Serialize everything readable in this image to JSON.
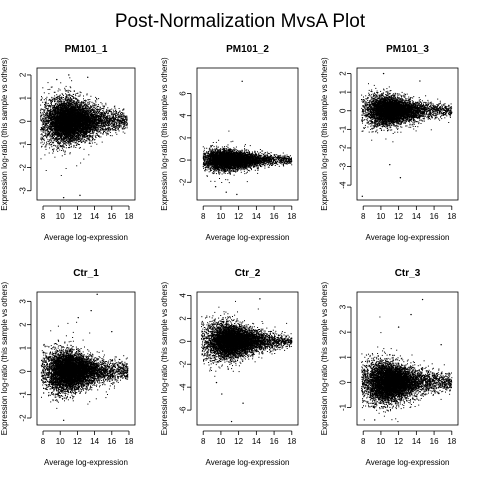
{
  "figure": {
    "title": "Post-Normalization MvsA Plot"
  },
  "chart_data": [
    {
      "type": "scatter",
      "title": "PM101_1",
      "xlabel": "Average log-expression",
      "ylabel": "Expression log-ratio (this sample vs others)",
      "xlim": [
        7.3,
        18.7
      ],
      "ylim": [
        -3.4,
        2.3
      ],
      "xticks": [
        8,
        10,
        12,
        14,
        16,
        18
      ],
      "yticks": [
        -3,
        -2,
        -1,
        0,
        1,
        2
      ],
      "grid": false,
      "cloud": {
        "center_x": 10.5,
        "x_min": 7.7,
        "x_max": 17.8,
        "x_skew": 1.6,
        "spread_at_low": 0.55,
        "spread_at_high": 0.2,
        "dense_points": 8000
      },
      "outliers": [
        {
          "x": 10.4,
          "y": -3.3
        },
        {
          "x": 12.3,
          "y": -3.2
        },
        {
          "x": 11.0,
          "y": 2.0
        },
        {
          "x": 13.2,
          "y": 1.9
        },
        {
          "x": 9.6,
          "y": 1.8
        }
      ]
    },
    {
      "type": "scatter",
      "title": "PM101_2",
      "xlabel": "Average log-expression",
      "ylabel": "Expression log-ratio (this sample vs others)",
      "xlim": [
        7.3,
        18.7
      ],
      "ylim": [
        -3.6,
        8.3
      ],
      "xticks": [
        8,
        10,
        12,
        14,
        16,
        18
      ],
      "yticks": [
        -2,
        0,
        2,
        4,
        6
      ],
      "grid": false,
      "cloud": {
        "center_x": 10.3,
        "x_min": 8.0,
        "x_max": 18.0,
        "x_skew": 1.6,
        "spread_at_low": 0.5,
        "spread_at_high": 0.18,
        "dense_points": 6000
      },
      "outliers": [
        {
          "x": 12.4,
          "y": 7.1
        },
        {
          "x": 10.6,
          "y": -2.9
        },
        {
          "x": 11.8,
          "y": -3.1
        },
        {
          "x": 9.4,
          "y": -2.4
        }
      ]
    },
    {
      "type": "scatter",
      "title": "PM101_3",
      "xlabel": "Average log-expression",
      "ylabel": "Expression log-ratio (this sample vs others)",
      "xlim": [
        7.3,
        18.7
      ],
      "ylim": [
        -4.8,
        2.3
      ],
      "xticks": [
        8,
        10,
        12,
        14,
        16,
        18
      ],
      "yticks": [
        -4,
        -3,
        -2,
        -1,
        0,
        1,
        2
      ],
      "grid": false,
      "cloud": {
        "center_x": 10.5,
        "x_min": 7.8,
        "x_max": 18.0,
        "x_skew": 1.6,
        "spread_at_low": 0.45,
        "spread_at_high": 0.15,
        "dense_points": 6000
      },
      "outliers": [
        {
          "x": 7.9,
          "y": -4.6
        },
        {
          "x": 12.2,
          "y": -3.6
        },
        {
          "x": 11.0,
          "y": -2.9
        },
        {
          "x": 14.4,
          "y": 1.6
        },
        {
          "x": 10.3,
          "y": 2.0
        }
      ]
    },
    {
      "type": "scatter",
      "title": "Ctr_1",
      "xlabel": "Average log-expression",
      "ylabel": "Expression log-ratio (this sample vs others)",
      "xlim": [
        7.3,
        18.7
      ],
      "ylim": [
        -2.3,
        3.4
      ],
      "xticks": [
        8,
        10,
        12,
        14,
        16,
        18
      ],
      "yticks": [
        -2,
        -1,
        0,
        1,
        2,
        3
      ],
      "grid": false,
      "cloud": {
        "center_x": 10.5,
        "x_min": 7.8,
        "x_max": 17.9,
        "x_skew": 1.6,
        "spread_at_low": 0.5,
        "spread_at_high": 0.18,
        "dense_points": 7000
      },
      "outliers": [
        {
          "x": 14.3,
          "y": 3.3
        },
        {
          "x": 13.6,
          "y": 2.6
        },
        {
          "x": 12.1,
          "y": 2.3
        },
        {
          "x": 10.4,
          "y": -2.1
        },
        {
          "x": 16.0,
          "y": 1.7
        }
      ]
    },
    {
      "type": "scatter",
      "title": "Ctr_2",
      "xlabel": "Average log-expression",
      "ylabel": "Expression log-ratio (this sample vs others)",
      "xlim": [
        7.3,
        18.7
      ],
      "ylim": [
        -7.3,
        4.3
      ],
      "xticks": [
        8,
        10,
        12,
        14,
        16,
        18
      ],
      "yticks": [
        -6,
        -4,
        -2,
        0,
        2,
        4
      ],
      "grid": false,
      "cloud": {
        "center_x": 10.6,
        "x_min": 7.8,
        "x_max": 18.0,
        "x_skew": 1.6,
        "spread_at_low": 0.9,
        "spread_at_high": 0.25,
        "dense_points": 7000
      },
      "outliers": [
        {
          "x": 11.2,
          "y": -7.0
        },
        {
          "x": 12.5,
          "y": -5.4
        },
        {
          "x": 10.1,
          "y": -4.6
        },
        {
          "x": 14.4,
          "y": 3.7
        },
        {
          "x": 9.5,
          "y": -3.6
        }
      ]
    },
    {
      "type": "scatter",
      "title": "Ctr_3",
      "xlabel": "Average log-expression",
      "ylabel": "Expression log-ratio (this sample vs others)",
      "xlim": [
        7.3,
        18.7
      ],
      "ylim": [
        -1.7,
        3.6
      ],
      "xticks": [
        8,
        10,
        12,
        14,
        16,
        18
      ],
      "yticks": [
        -1,
        0,
        1,
        2,
        3
      ],
      "grid": false,
      "cloud": {
        "center_x": 10.4,
        "x_min": 7.8,
        "x_max": 18.0,
        "x_skew": 1.6,
        "spread_at_low": 0.45,
        "spread_at_high": 0.16,
        "dense_points": 7000
      },
      "outliers": [
        {
          "x": 14.7,
          "y": 3.3
        },
        {
          "x": 13.4,
          "y": 2.7
        },
        {
          "x": 12.0,
          "y": 2.2
        },
        {
          "x": 9.3,
          "y": -1.5
        },
        {
          "x": 16.8,
          "y": 1.5
        }
      ]
    }
  ]
}
